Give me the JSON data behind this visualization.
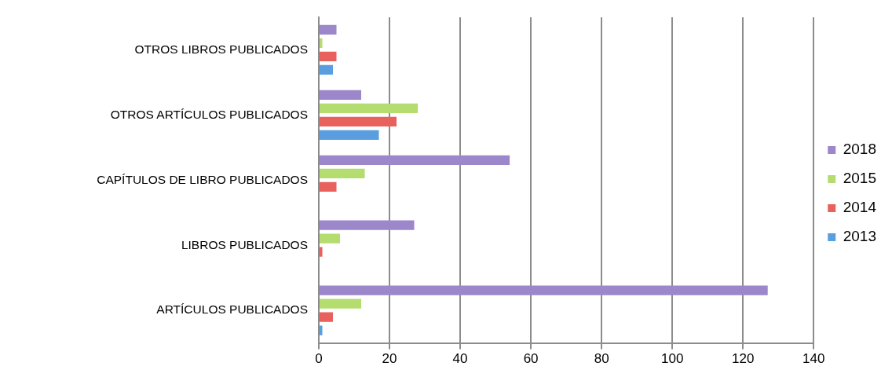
{
  "chart_data": {
    "type": "bar",
    "orientation": "horizontal",
    "categories": [
      "OTROS LIBROS PUBLICADOS",
      "OTROS ARTÍCULOS PUBLICADOS",
      "CAPÍTULOS DE LIBRO PUBLICADOS",
      "LIBROS PUBLICADOS",
      "ARTÍCULOS PUBLICADOS"
    ],
    "series": [
      {
        "name": "2018",
        "color": "#9b87c9",
        "values": [
          5,
          12,
          54,
          27,
          127
        ]
      },
      {
        "name": "2015",
        "color": "#b5dc6e",
        "values": [
          1,
          28,
          13,
          6,
          12
        ]
      },
      {
        "name": "2014",
        "color": "#e8615c",
        "values": [
          5,
          22,
          5,
          1,
          4
        ]
      },
      {
        "name": "2013",
        "color": "#5a9ee0",
        "values": [
          4,
          17,
          0,
          0,
          1
        ]
      }
    ],
    "xlim": [
      0,
      140
    ],
    "xticks": [
      0,
      20,
      40,
      60,
      80,
      100,
      120,
      140
    ],
    "grid": "x",
    "legend": "right"
  }
}
